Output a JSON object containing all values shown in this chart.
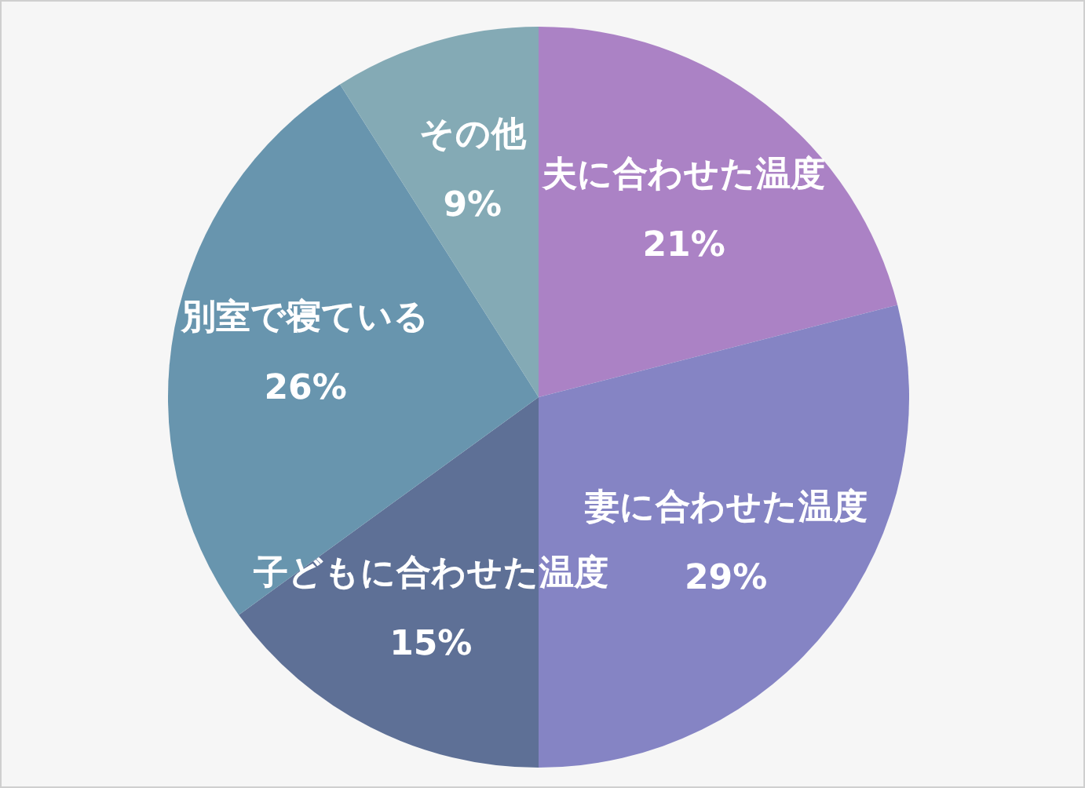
{
  "chart_data": {
    "type": "pie",
    "categories": [
      "夫に合わせた温度",
      "妻に合わせた温度",
      "子どもに合わせた温度",
      "別室で寝ている",
      "その他"
    ],
    "values": [
      21,
      29,
      15,
      26,
      9
    ],
    "colors": [
      "#ab82c5",
      "#8584c4",
      "#5e7096",
      "#6895ae",
      "#84aab5"
    ],
    "value_labels": [
      "21%",
      "29%",
      "15%",
      "26%",
      "9%"
    ]
  }
}
